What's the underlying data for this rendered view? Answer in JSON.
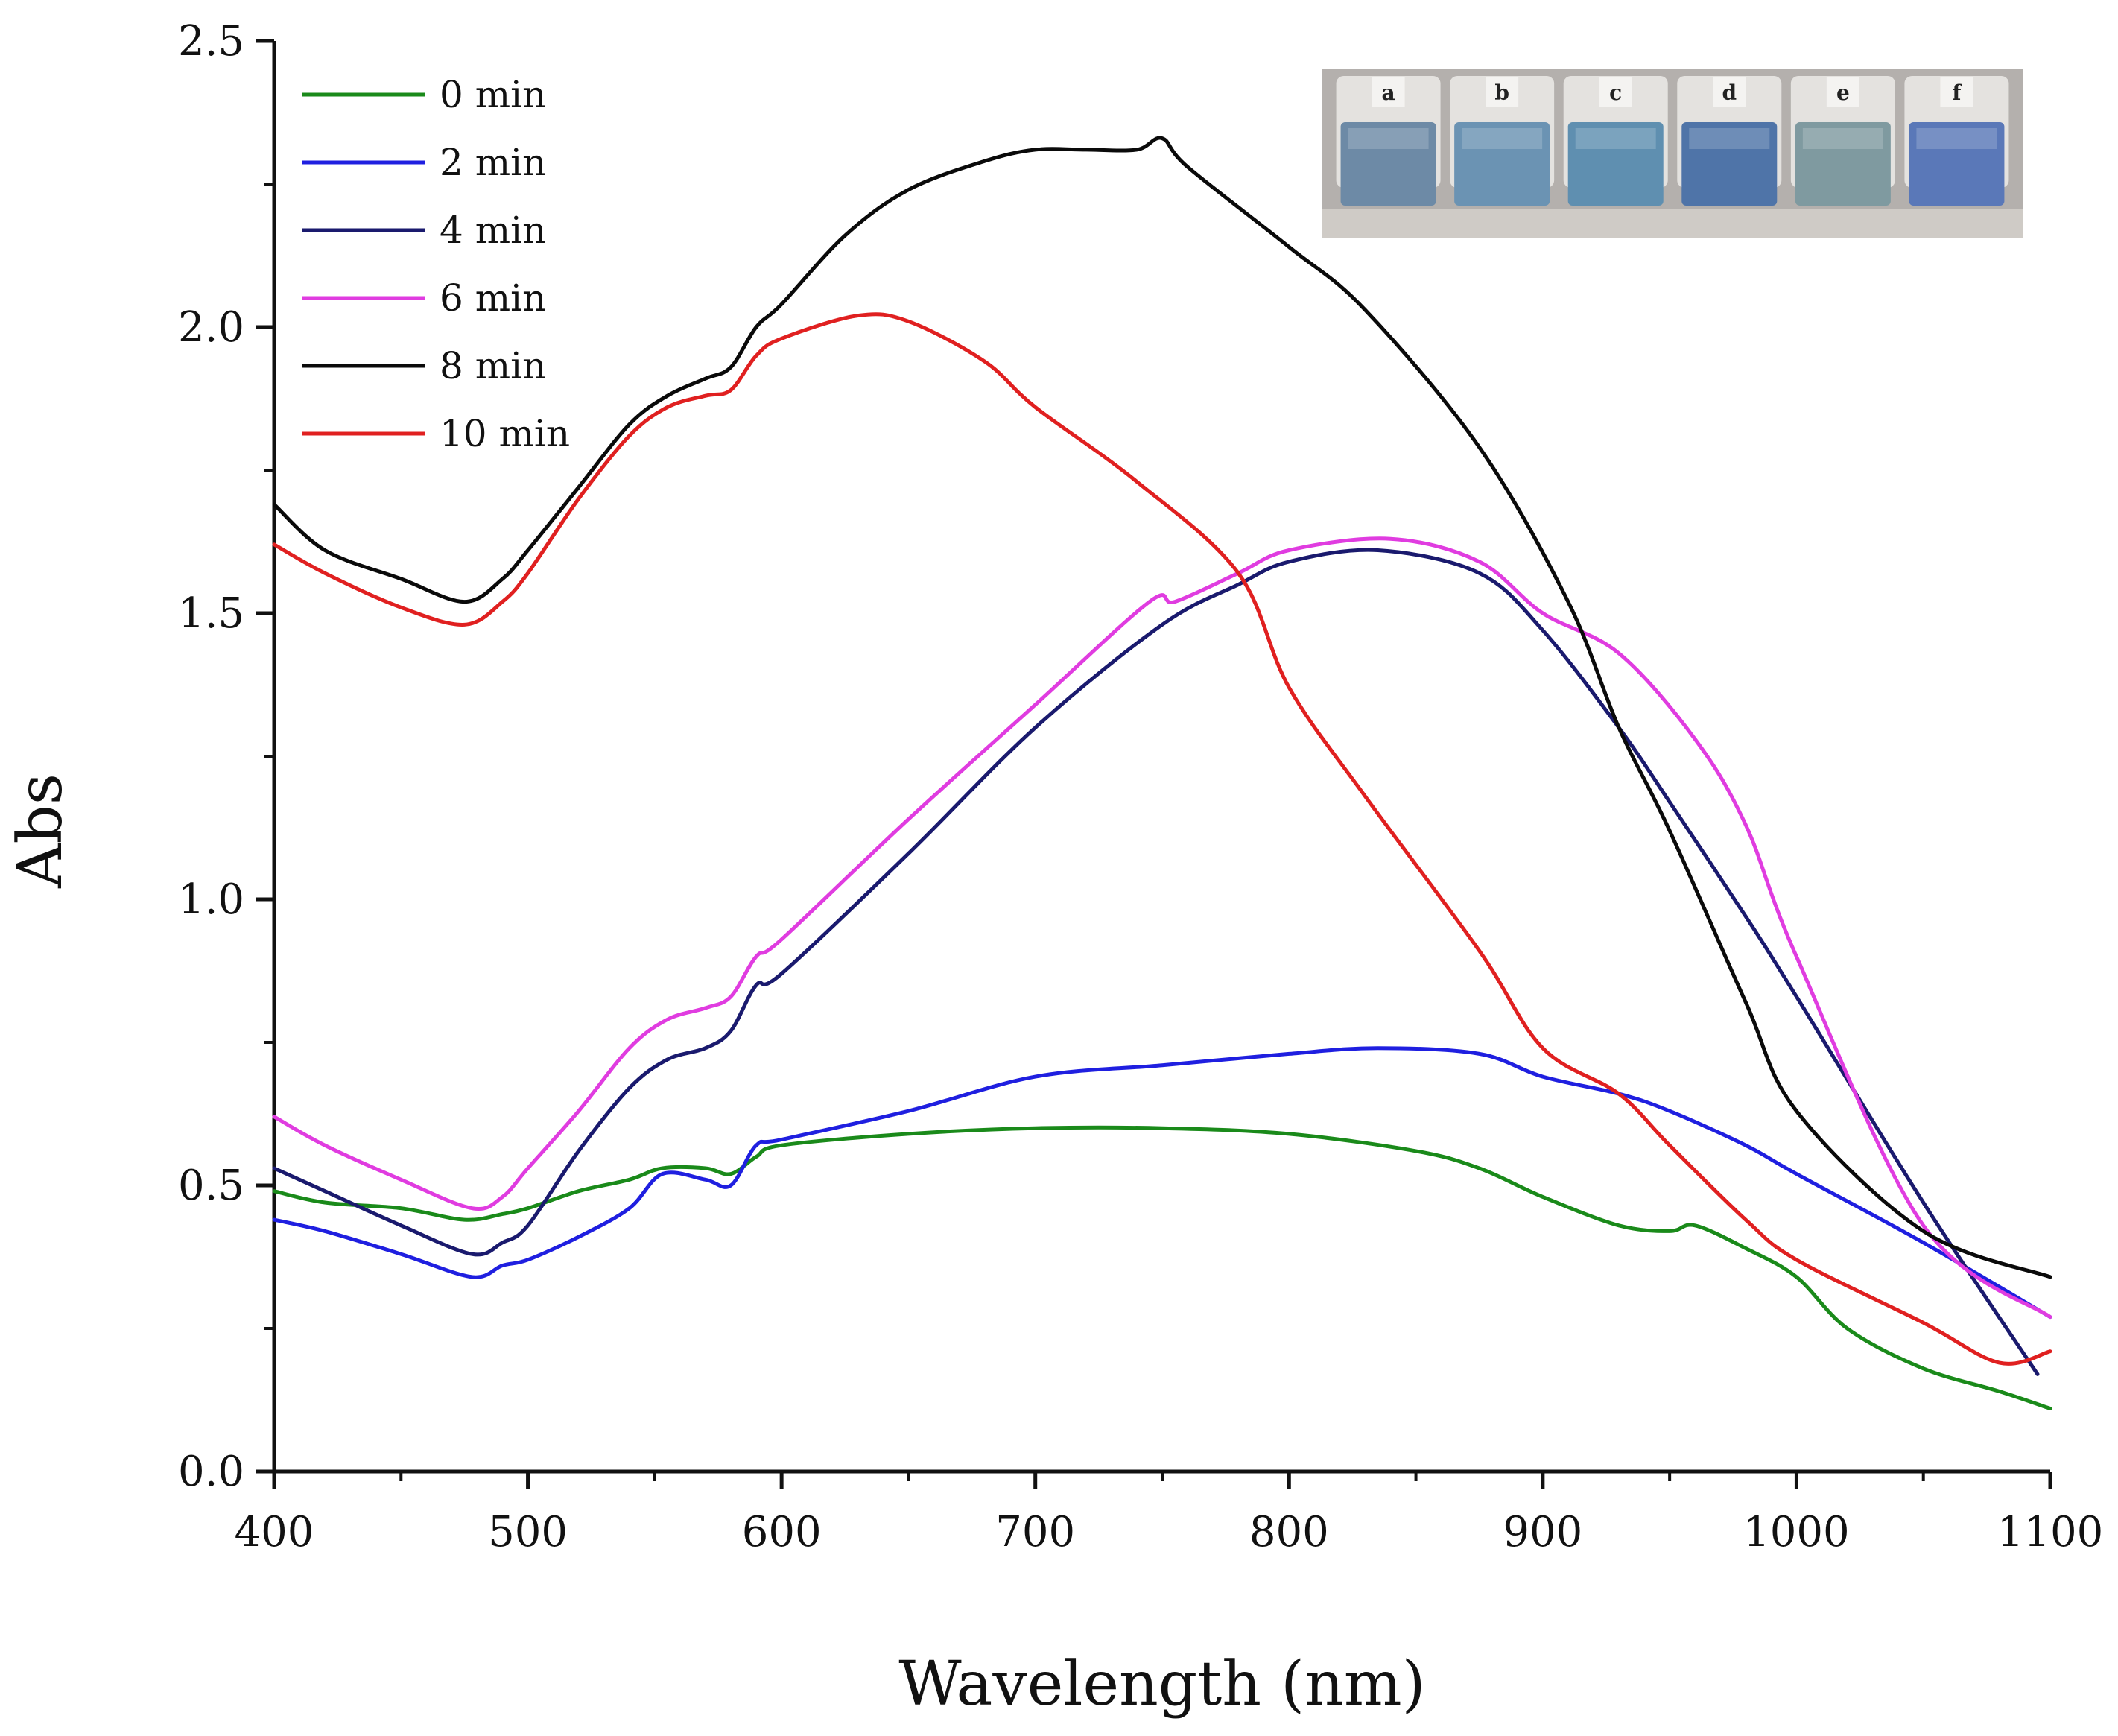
{
  "chart_data": {
    "type": "line",
    "title": "",
    "xlabel": "Wavelength (nm)",
    "ylabel": "Abs",
    "xlim": [
      400,
      1100
    ],
    "ylim": [
      0.0,
      2.5
    ],
    "xticks": [
      400,
      500,
      600,
      700,
      800,
      900,
      1000,
      1100
    ],
    "xtick_labels": [
      "400",
      "500",
      "600",
      "700",
      "800",
      "900",
      "1000",
      "1100"
    ],
    "yticks": [
      0.0,
      0.5,
      1.0,
      1.5,
      2.0,
      2.5
    ],
    "ytick_labels": [
      "0.0",
      "0.5",
      "1.0",
      "1.5",
      "2.0",
      "2.5"
    ],
    "grid": false,
    "legend_position": "top-left",
    "series": [
      {
        "name": "0 min",
        "color": "#1a8a1a",
        "x": [
          400,
          420,
          450,
          475,
          490,
          500,
          520,
          540,
          553,
          570,
          580,
          590,
          600,
          650,
          700,
          750,
          800,
          850,
          875,
          900,
          930,
          950,
          960,
          980,
          1000,
          1020,
          1050,
          1080,
          1100
        ],
        "y": [
          0.49,
          0.47,
          0.46,
          0.44,
          0.45,
          0.46,
          0.49,
          0.51,
          0.53,
          0.53,
          0.52,
          0.55,
          0.57,
          0.59,
          0.6,
          0.6,
          0.59,
          0.56,
          0.53,
          0.48,
          0.43,
          0.42,
          0.43,
          0.39,
          0.34,
          0.25,
          0.18,
          0.14,
          0.11
        ]
      },
      {
        "name": "2 min",
        "color": "#1f1fe0",
        "x": [
          400,
          420,
          450,
          478,
          490,
          500,
          520,
          540,
          553,
          570,
          580,
          590,
          600,
          650,
          700,
          750,
          800,
          835,
          875,
          900,
          930,
          950,
          980,
          1000,
          1050,
          1100
        ],
        "y": [
          0.44,
          0.42,
          0.38,
          0.34,
          0.36,
          0.37,
          0.41,
          0.46,
          0.52,
          0.51,
          0.5,
          0.57,
          0.58,
          0.63,
          0.69,
          0.71,
          0.73,
          0.74,
          0.73,
          0.69,
          0.66,
          0.63,
          0.57,
          0.52,
          0.4,
          0.27
        ]
      },
      {
        "name": "4 min",
        "color": "#1a1a6e",
        "x": [
          400,
          420,
          450,
          478,
          490,
          500,
          520,
          540,
          555,
          570,
          580,
          590,
          600,
          650,
          700,
          750,
          780,
          800,
          835,
          875,
          900,
          930,
          950,
          980,
          1000,
          1050,
          1095
        ],
        "y": [
          0.53,
          0.49,
          0.43,
          0.38,
          0.4,
          0.43,
          0.56,
          0.67,
          0.72,
          0.74,
          0.77,
          0.85,
          0.87,
          1.08,
          1.3,
          1.48,
          1.55,
          1.59,
          1.61,
          1.57,
          1.47,
          1.3,
          1.17,
          0.97,
          0.83,
          0.47,
          0.17
        ]
      },
      {
        "name": "6 min",
        "color": "#e03ce0",
        "x": [
          400,
          420,
          450,
          478,
          490,
          500,
          520,
          540,
          555,
          570,
          580,
          590,
          600,
          650,
          700,
          745,
          755,
          780,
          800,
          840,
          875,
          900,
          930,
          960,
          980,
          1000,
          1050,
          1100
        ],
        "y": [
          0.62,
          0.57,
          0.51,
          0.46,
          0.48,
          0.53,
          0.63,
          0.74,
          0.79,
          0.81,
          0.83,
          0.9,
          0.93,
          1.14,
          1.34,
          1.52,
          1.52,
          1.57,
          1.61,
          1.63,
          1.59,
          1.5,
          1.43,
          1.28,
          1.13,
          0.9,
          0.43,
          0.27
        ]
      },
      {
        "name": "8 min",
        "color": "#0a0a0a",
        "x": [
          400,
          420,
          450,
          475,
          490,
          500,
          520,
          540,
          555,
          570,
          580,
          590,
          600,
          625,
          650,
          680,
          700,
          720,
          740,
          750,
          760,
          800,
          830,
          875,
          910,
          930,
          950,
          980,
          1000,
          1050,
          1100
        ],
        "y": [
          1.69,
          1.61,
          1.56,
          1.52,
          1.56,
          1.61,
          1.72,
          1.83,
          1.88,
          1.91,
          1.93,
          2.0,
          2.04,
          2.16,
          2.24,
          2.29,
          2.31,
          2.31,
          2.31,
          2.33,
          2.28,
          2.14,
          2.03,
          1.79,
          1.52,
          1.3,
          1.12,
          0.82,
          0.63,
          0.42,
          0.34
        ]
      },
      {
        "name": "10 min",
        "color": "#e02020",
        "x": [
          400,
          420,
          450,
          475,
          490,
          500,
          520,
          540,
          555,
          570,
          580,
          590,
          600,
          630,
          650,
          680,
          700,
          740,
          780,
          800,
          830,
          875,
          900,
          930,
          950,
          980,
          1000,
          1050,
          1080,
          1100
        ],
        "y": [
          1.62,
          1.57,
          1.51,
          1.48,
          1.52,
          1.57,
          1.7,
          1.81,
          1.86,
          1.88,
          1.89,
          1.95,
          1.98,
          2.02,
          2.01,
          1.94,
          1.86,
          1.73,
          1.57,
          1.37,
          1.18,
          0.91,
          0.74,
          0.66,
          0.57,
          0.44,
          0.37,
          0.26,
          0.19,
          0.21
        ]
      }
    ],
    "inset": {
      "description_labels": [
        "a",
        "b",
        "c",
        "d",
        "e",
        "f"
      ],
      "cuvette_colors": [
        "#6d8aa6",
        "#6b93b3",
        "#5f8fb0",
        "#4f74a8",
        "#7f9aa0",
        "#5a78b8"
      ]
    }
  }
}
